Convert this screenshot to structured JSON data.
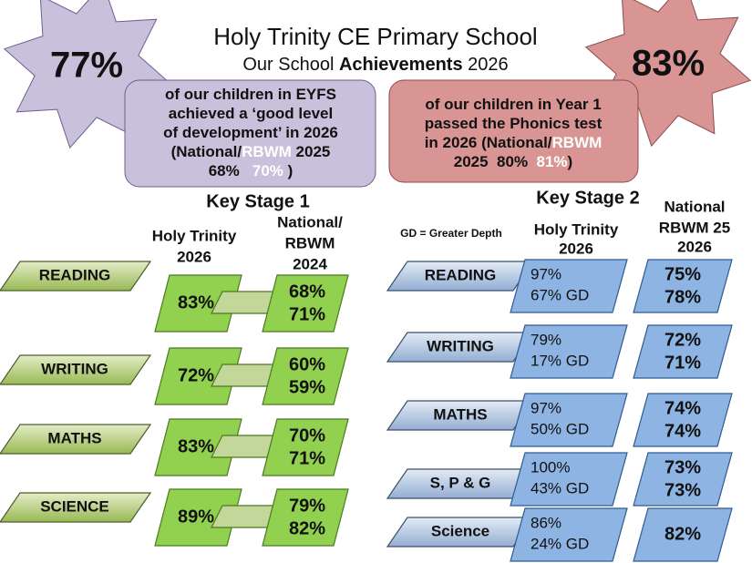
{
  "header": {
    "title": "Holy Trinity CE Primary School",
    "subtitle_prefix": "Our School ",
    "subtitle_bold": "Achievements",
    "subtitle_suffix": " 2026"
  },
  "eyfs": {
    "stat": "77%",
    "lines": [
      [
        {
          "text": "of our children in EYFS"
        }
      ],
      [
        {
          "text": "achieved a ‘good level"
        }
      ],
      [
        {
          "text": "of development’ in 2026"
        }
      ],
      [
        {
          "text": "(National/"
        },
        {
          "text": "RBWM",
          "color": "#ffffff"
        },
        {
          "text": " 2025"
        }
      ],
      [
        {
          "text": "68%   "
        },
        {
          "text": "70%",
          "color": "#ffffff"
        },
        {
          "text": " )"
        }
      ]
    ]
  },
  "phonics": {
    "stat": "83%",
    "lines": [
      [
        {
          "text": "of our children in Year 1"
        }
      ],
      [
        {
          "text": "passed the Phonics test"
        }
      ],
      [
        {
          "text": "in 2026 (National/"
        },
        {
          "text": "RBWM",
          "color": "#ffffff"
        }
      ],
      [
        {
          "text": "2025  80%  "
        },
        {
          "text": "81%",
          "color": "#ffffff"
        },
        {
          "text": ")"
        }
      ]
    ]
  },
  "ks1": {
    "heading": "Key Stage 1",
    "school_header": [
      "Holy Trinity",
      "2026"
    ],
    "national_header": [
      "National/",
      "RBWM",
      "2024"
    ],
    "rows": [
      {
        "subject": "READING",
        "school": "83%",
        "national": "68%",
        "rbwm": "71%"
      },
      {
        "subject": "WRITING",
        "school": "72%",
        "national": "60%",
        "rbwm": "59%"
      },
      {
        "subject": "MATHS",
        "school": "83%",
        "national": "70%",
        "rbwm": "71%"
      },
      {
        "subject": "SCIENCE",
        "school": "89%",
        "national": "79%",
        "rbwm": "82%"
      }
    ]
  },
  "ks2": {
    "heading": "Key Stage 2",
    "note": "GD = Greater Depth",
    "school_header": [
      "Holy Trinity",
      "2026"
    ],
    "national_header": [
      "National",
      "RBWM 25",
      "2026"
    ],
    "rows": [
      {
        "subject": "READING",
        "expected": "97%",
        "greater_depth": "67% GD",
        "national": "75%",
        "rbwm": "78%"
      },
      {
        "subject": "WRITING",
        "expected": "79%",
        "greater_depth": "17% GD",
        "national": "72%",
        "rbwm": "71%"
      },
      {
        "subject": "MATHS",
        "expected": "97%",
        "greater_depth": "50% GD",
        "national": "74%",
        "rbwm": "74%"
      },
      {
        "subject": "S, P & G",
        "expected": "100%",
        "greater_depth": "43% GD",
        "national": "73%",
        "rbwm": "73%"
      },
      {
        "subject": "Science",
        "expected": "86%",
        "greater_depth": "24% GD",
        "national": "82%"
      }
    ]
  }
}
